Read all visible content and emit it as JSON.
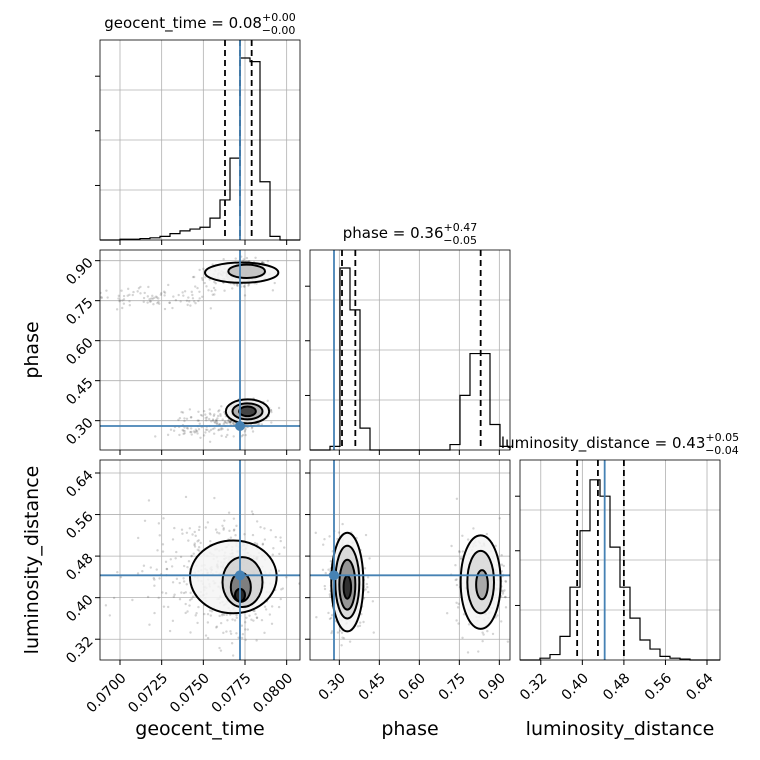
{
  "chart_data": {
    "type": "corner",
    "parameters": [
      "geocent_time",
      "phase",
      "luminosity_distance"
    ],
    "truth_color": "#4682b4",
    "truths": {
      "geocent_time": 0.0772,
      "phase": 0.28,
      "luminosity_distance": 0.443
    },
    "titles": {
      "geocent_time": {
        "name": "geocent_time",
        "median": "0.08",
        "plus": "+0.00",
        "minus": "−0.00"
      },
      "phase": {
        "name": "phase",
        "median": "0.36",
        "plus": "+0.47",
        "minus": "−0.05"
      },
      "luminosity_distance": {
        "name": "luminosity_distance",
        "median": "0.43",
        "plus": "+0.05",
        "minus": "−0.04"
      }
    },
    "axis_labels": {
      "geocent_time": "geocent_time",
      "phase": "phase",
      "luminosity_distance": "luminosity_distance"
    },
    "ranges": {
      "geocent_time": [
        0.0688,
        0.0808
      ],
      "phase": [
        0.19,
        0.94
      ],
      "luminosity_distance": [
        0.28,
        0.665
      ]
    },
    "ticks": {
      "geocent_time": {
        "values": [
          0.07,
          0.0725,
          0.075,
          0.0775,
          0.08
        ],
        "labels": [
          "0.0700",
          "0.0725",
          "0.0750",
          "0.0775",
          "0.0800"
        ]
      },
      "phase": {
        "values": [
          0.3,
          0.45,
          0.6,
          0.75,
          0.9
        ],
        "labels": [
          "0.30",
          "0.45",
          "0.60",
          "0.75",
          "0.90"
        ]
      },
      "luminosity_distance": {
        "values": [
          0.32,
          0.4,
          0.48,
          0.56,
          0.64
        ],
        "labels": [
          "0.32",
          "0.40",
          "0.48",
          "0.56",
          "0.64"
        ]
      }
    },
    "quantiles": {
      "geocent_time": [
        0.0763,
        0.0772,
        0.0779
      ],
      "phase": [
        0.31,
        0.36,
        0.83
      ],
      "luminosity_distance": [
        0.39,
        0.43,
        0.48
      ]
    },
    "histograms": {
      "geocent_time": {
        "edges": [
          0.0688,
          0.0694,
          0.07,
          0.0706,
          0.0712,
          0.0718,
          0.0724,
          0.073,
          0.0736,
          0.0742,
          0.0748,
          0.0754,
          0.076,
          0.0766,
          0.0772,
          0.0778,
          0.0784,
          0.079,
          0.0796,
          0.0802,
          0.0808
        ],
        "counts": [
          0,
          0,
          0.004,
          0.004,
          0.008,
          0.012,
          0.02,
          0.035,
          0.05,
          0.06,
          0.07,
          0.12,
          0.22,
          0.45,
          1.0,
          0.98,
          0.32,
          0.02,
          0,
          0
        ]
      },
      "phase": {
        "edges": [
          0.19,
          0.2275,
          0.265,
          0.3025,
          0.34,
          0.3775,
          0.415,
          0.4525,
          0.49,
          0.5275,
          0.565,
          0.6025,
          0.64,
          0.6775,
          0.715,
          0.7525,
          0.79,
          0.8275,
          0.865,
          0.9025,
          0.94
        ],
        "counts": [
          0,
          0,
          0.02,
          1.0,
          0.77,
          0.12,
          0,
          0,
          0,
          0,
          0,
          0,
          0,
          0,
          0.03,
          0.3,
          0.53,
          0.53,
          0.14,
          0.02
        ]
      },
      "luminosity_distance": {
        "edges": [
          0.28,
          0.29925,
          0.3185,
          0.33775,
          0.357,
          0.37625,
          0.3955,
          0.41475,
          0.434,
          0.45325,
          0.4725,
          0.49175,
          0.511,
          0.53025,
          0.5495,
          0.56875,
          0.588,
          0.60725,
          0.6265,
          0.64575,
          0.665
        ],
        "counts": [
          0,
          0,
          0.01,
          0.03,
          0.13,
          0.4,
          0.71,
          0.99,
          0.9,
          0.62,
          0.4,
          0.23,
          0.11,
          0.06,
          0.02,
          0.01,
          0.005,
          0,
          0,
          0
        ]
      }
    },
    "clusters": [
      {
        "x": "geocent_time",
        "y": "phase",
        "blobs": [
          {
            "cx": 0.07765,
            "cy": 0.86,
            "sx": 0.0006,
            "sy": 0.022,
            "n": 260
          },
          {
            "cx": 0.0767,
            "cy": 0.84,
            "sx": 0.0011,
            "sy": 0.02,
            "n": 120
          },
          {
            "cx": 0.0722,
            "cy": 0.755,
            "sx": 0.0022,
            "sy": 0.022,
            "n": 90
          },
          {
            "cx": 0.07765,
            "cy": 0.33,
            "sx": 0.0006,
            "sy": 0.022,
            "n": 300
          },
          {
            "cx": 0.0762,
            "cy": 0.3,
            "sx": 0.0012,
            "sy": 0.022,
            "n": 110
          },
          {
            "cx": 0.0748,
            "cy": 0.26,
            "sx": 0.0012,
            "sy": 0.015,
            "n": 50
          }
        ],
        "contours": [
          {
            "cx": 0.0773,
            "cy": 0.855,
            "rx": 0.0022,
            "ry": 0.038,
            "fill": "#f4f4f4"
          },
          {
            "cx": 0.0776,
            "cy": 0.86,
            "rx": 0.0011,
            "ry": 0.025,
            "fill": "#bdbdbd"
          },
          {
            "cx": 0.07765,
            "cy": 0.335,
            "rx": 0.0013,
            "ry": 0.045,
            "fill": "#ececec"
          },
          {
            "cx": 0.07765,
            "cy": 0.335,
            "rx": 0.0009,
            "ry": 0.03,
            "fill": "#a8a8a8"
          },
          {
            "cx": 0.07765,
            "cy": 0.335,
            "rx": 0.0005,
            "ry": 0.018,
            "fill": "#303030"
          }
        ]
      },
      {
        "x": "geocent_time",
        "y": "luminosity_distance",
        "blobs": [
          {
            "cx": 0.0772,
            "cy": 0.43,
            "sx": 0.0009,
            "sy": 0.045,
            "n": 380
          },
          {
            "cx": 0.075,
            "cy": 0.45,
            "sx": 0.0022,
            "sy": 0.055,
            "n": 240
          }
        ],
        "contours": [
          {
            "cx": 0.0768,
            "cy": 0.44,
            "rx": 0.0026,
            "ry": 0.07,
            "fill": "#f4f4f4"
          },
          {
            "cx": 0.07735,
            "cy": 0.43,
            "rx": 0.0012,
            "ry": 0.048,
            "fill": "#d0d0d0"
          },
          {
            "cx": 0.07725,
            "cy": 0.42,
            "rx": 0.0006,
            "ry": 0.028,
            "fill": "#707070"
          },
          {
            "cx": 0.0772,
            "cy": 0.405,
            "rx": 0.0003,
            "ry": 0.012,
            "fill": "#1a1a1a"
          }
        ]
      },
      {
        "x": "phase",
        "y": "luminosity_distance",
        "blobs": [
          {
            "cx": 0.33,
            "cy": 0.43,
            "sx": 0.035,
            "sy": 0.045,
            "n": 380
          },
          {
            "cx": 0.83,
            "cy": 0.43,
            "sx": 0.045,
            "sy": 0.045,
            "n": 300
          }
        ],
        "contours": [
          {
            "cx": 0.33,
            "cy": 0.43,
            "rx": 0.06,
            "ry": 0.095,
            "fill": "#f4f4f4"
          },
          {
            "cx": 0.33,
            "cy": 0.43,
            "rx": 0.045,
            "ry": 0.07,
            "fill": "#d6d6d6"
          },
          {
            "cx": 0.33,
            "cy": 0.425,
            "rx": 0.03,
            "ry": 0.048,
            "fill": "#8a8a8a"
          },
          {
            "cx": 0.33,
            "cy": 0.42,
            "rx": 0.014,
            "ry": 0.022,
            "fill": "#1e1e1e"
          },
          {
            "cx": 0.83,
            "cy": 0.43,
            "rx": 0.075,
            "ry": 0.09,
            "fill": "#f4f4f4"
          },
          {
            "cx": 0.83,
            "cy": 0.43,
            "rx": 0.05,
            "ry": 0.06,
            "fill": "#d8d8d8"
          },
          {
            "cx": 0.835,
            "cy": 0.425,
            "rx": 0.022,
            "ry": 0.028,
            "fill": "#a0a0a0"
          }
        ]
      }
    ],
    "grid": true
  }
}
